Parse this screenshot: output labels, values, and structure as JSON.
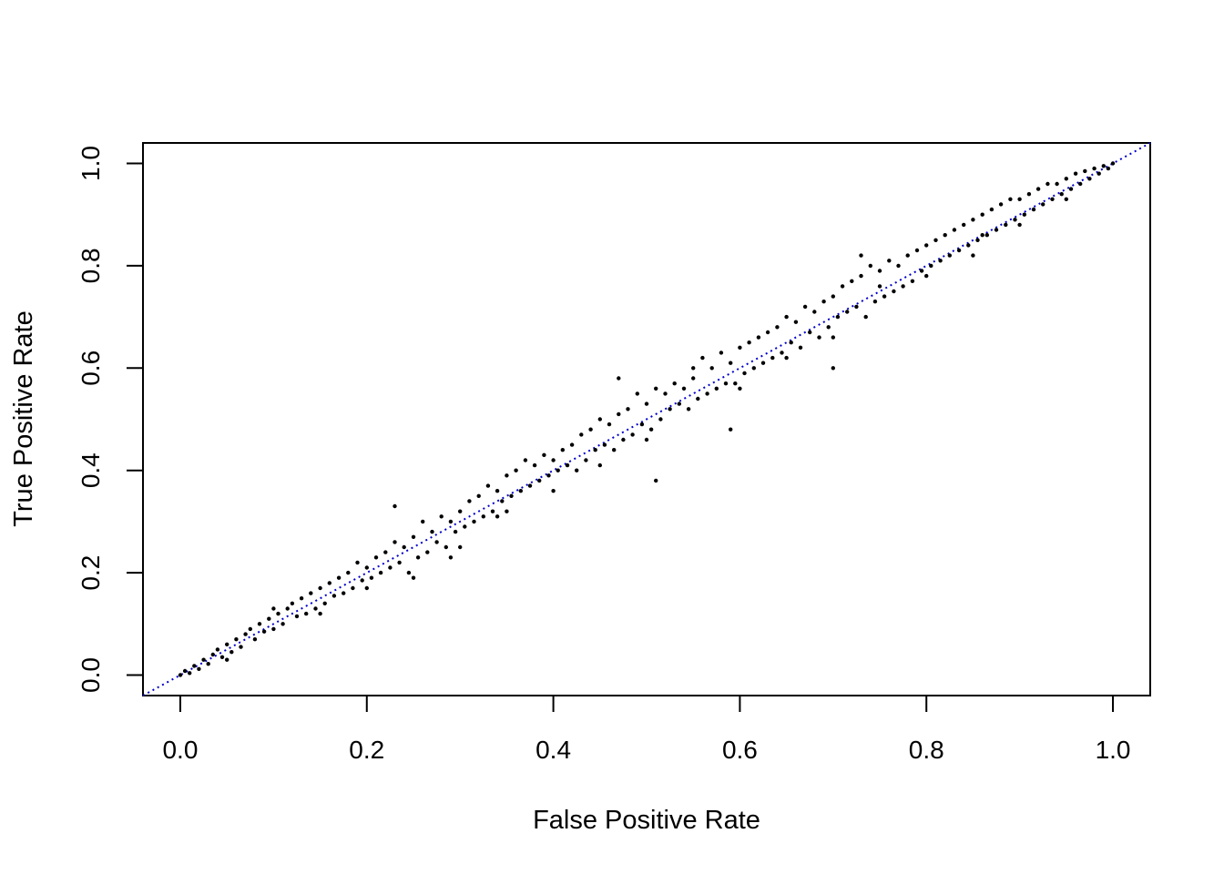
{
  "chart_data": {
    "type": "scatter",
    "title": "",
    "xlabel": "False Positive Rate",
    "ylabel": "True Positive Rate",
    "xlim": [
      -0.04,
      1.04
    ],
    "ylim": [
      -0.04,
      1.04
    ],
    "x_ticks": [
      0.0,
      0.2,
      0.4,
      0.6,
      0.8,
      1.0
    ],
    "x_tick_labels": [
      "0.0",
      "0.2",
      "0.4",
      "0.6",
      "0.8",
      "1.0"
    ],
    "y_ticks": [
      0.0,
      0.2,
      0.4,
      0.6,
      0.8,
      1.0
    ],
    "y_tick_labels": [
      "0.0",
      "0.2",
      "0.4",
      "0.6",
      "0.8",
      "1.0"
    ],
    "grid": false,
    "legend": "none",
    "point_color": "#000000",
    "reference_line": {
      "slope": 1,
      "intercept": 0,
      "style": "dotted",
      "color": "#0000cc"
    },
    "points": [
      [
        0.0,
        0.0
      ],
      [
        0.005,
        0.008
      ],
      [
        0.01,
        0.004
      ],
      [
        0.015,
        0.018
      ],
      [
        0.02,
        0.012
      ],
      [
        0.025,
        0.03
      ],
      [
        0.03,
        0.022
      ],
      [
        0.035,
        0.04
      ],
      [
        0.04,
        0.05
      ],
      [
        0.045,
        0.035
      ],
      [
        0.05,
        0.06
      ],
      [
        0.055,
        0.045
      ],
      [
        0.06,
        0.07
      ],
      [
        0.065,
        0.055
      ],
      [
        0.07,
        0.08
      ],
      [
        0.075,
        0.09
      ],
      [
        0.08,
        0.07
      ],
      [
        0.085,
        0.1
      ],
      [
        0.09,
        0.085
      ],
      [
        0.095,
        0.11
      ],
      [
        0.1,
        0.09
      ],
      [
        0.105,
        0.12
      ],
      [
        0.11,
        0.1
      ],
      [
        0.115,
        0.13
      ],
      [
        0.12,
        0.14
      ],
      [
        0.125,
        0.115
      ],
      [
        0.13,
        0.15
      ],
      [
        0.135,
        0.12
      ],
      [
        0.14,
        0.16
      ],
      [
        0.145,
        0.13
      ],
      [
        0.15,
        0.17
      ],
      [
        0.155,
        0.14
      ],
      [
        0.16,
        0.18
      ],
      [
        0.165,
        0.155
      ],
      [
        0.17,
        0.19
      ],
      [
        0.175,
        0.16
      ],
      [
        0.18,
        0.2
      ],
      [
        0.185,
        0.17
      ],
      [
        0.19,
        0.22
      ],
      [
        0.195,
        0.185
      ],
      [
        0.2,
        0.21
      ],
      [
        0.205,
        0.19
      ],
      [
        0.21,
        0.23
      ],
      [
        0.215,
        0.2
      ],
      [
        0.22,
        0.24
      ],
      [
        0.225,
        0.21
      ],
      [
        0.23,
        0.26
      ],
      [
        0.235,
        0.22
      ],
      [
        0.24,
        0.25
      ],
      [
        0.245,
        0.2
      ],
      [
        0.25,
        0.27
      ],
      [
        0.255,
        0.23
      ],
      [
        0.26,
        0.3
      ],
      [
        0.265,
        0.24
      ],
      [
        0.27,
        0.28
      ],
      [
        0.275,
        0.26
      ],
      [
        0.28,
        0.31
      ],
      [
        0.285,
        0.25
      ],
      [
        0.29,
        0.3
      ],
      [
        0.295,
        0.28
      ],
      [
        0.3,
        0.32
      ],
      [
        0.305,
        0.29
      ],
      [
        0.31,
        0.34
      ],
      [
        0.315,
        0.3
      ],
      [
        0.32,
        0.35
      ],
      [
        0.325,
        0.31
      ],
      [
        0.33,
        0.37
      ],
      [
        0.335,
        0.32
      ],
      [
        0.34,
        0.36
      ],
      [
        0.345,
        0.34
      ],
      [
        0.35,
        0.39
      ],
      [
        0.355,
        0.35
      ],
      [
        0.36,
        0.4
      ],
      [
        0.365,
        0.36
      ],
      [
        0.37,
        0.42
      ],
      [
        0.375,
        0.37
      ],
      [
        0.38,
        0.41
      ],
      [
        0.385,
        0.38
      ],
      [
        0.39,
        0.43
      ],
      [
        0.395,
        0.39
      ],
      [
        0.4,
        0.42
      ],
      [
        0.405,
        0.4
      ],
      [
        0.41,
        0.44
      ],
      [
        0.415,
        0.41
      ],
      [
        0.42,
        0.45
      ],
      [
        0.425,
        0.4
      ],
      [
        0.43,
        0.47
      ],
      [
        0.435,
        0.42
      ],
      [
        0.44,
        0.48
      ],
      [
        0.445,
        0.44
      ],
      [
        0.45,
        0.5
      ],
      [
        0.455,
        0.45
      ],
      [
        0.46,
        0.49
      ],
      [
        0.465,
        0.44
      ],
      [
        0.47,
        0.51
      ],
      [
        0.475,
        0.46
      ],
      [
        0.48,
        0.52
      ],
      [
        0.485,
        0.47
      ],
      [
        0.49,
        0.55
      ],
      [
        0.495,
        0.49
      ],
      [
        0.5,
        0.53
      ],
      [
        0.505,
        0.48
      ],
      [
        0.51,
        0.56
      ],
      [
        0.515,
        0.5
      ],
      [
        0.52,
        0.55
      ],
      [
        0.525,
        0.52
      ],
      [
        0.53,
        0.57
      ],
      [
        0.535,
        0.53
      ],
      [
        0.54,
        0.56
      ],
      [
        0.545,
        0.52
      ],
      [
        0.55,
        0.6
      ],
      [
        0.555,
        0.54
      ],
      [
        0.56,
        0.62
      ],
      [
        0.565,
        0.55
      ],
      [
        0.57,
        0.6
      ],
      [
        0.575,
        0.56
      ],
      [
        0.58,
        0.63
      ],
      [
        0.585,
        0.57
      ],
      [
        0.59,
        0.61
      ],
      [
        0.595,
        0.57
      ],
      [
        0.6,
        0.64
      ],
      [
        0.605,
        0.59
      ],
      [
        0.61,
        0.65
      ],
      [
        0.615,
        0.6
      ],
      [
        0.62,
        0.66
      ],
      [
        0.625,
        0.61
      ],
      [
        0.63,
        0.67
      ],
      [
        0.635,
        0.62
      ],
      [
        0.64,
        0.68
      ],
      [
        0.645,
        0.63
      ],
      [
        0.65,
        0.7
      ],
      [
        0.655,
        0.65
      ],
      [
        0.66,
        0.69
      ],
      [
        0.665,
        0.64
      ],
      [
        0.67,
        0.72
      ],
      [
        0.675,
        0.67
      ],
      [
        0.68,
        0.71
      ],
      [
        0.685,
        0.66
      ],
      [
        0.69,
        0.73
      ],
      [
        0.695,
        0.68
      ],
      [
        0.7,
        0.74
      ],
      [
        0.705,
        0.7
      ],
      [
        0.71,
        0.76
      ],
      [
        0.715,
        0.71
      ],
      [
        0.72,
        0.77
      ],
      [
        0.725,
        0.72
      ],
      [
        0.73,
        0.78
      ],
      [
        0.735,
        0.7
      ],
      [
        0.74,
        0.8
      ],
      [
        0.745,
        0.73
      ],
      [
        0.75,
        0.79
      ],
      [
        0.755,
        0.74
      ],
      [
        0.76,
        0.81
      ],
      [
        0.765,
        0.75
      ],
      [
        0.77,
        0.8
      ],
      [
        0.775,
        0.76
      ],
      [
        0.78,
        0.82
      ],
      [
        0.785,
        0.77
      ],
      [
        0.79,
        0.83
      ],
      [
        0.795,
        0.79
      ],
      [
        0.8,
        0.84
      ],
      [
        0.805,
        0.8
      ],
      [
        0.81,
        0.85
      ],
      [
        0.815,
        0.81
      ],
      [
        0.82,
        0.86
      ],
      [
        0.825,
        0.82
      ],
      [
        0.83,
        0.87
      ],
      [
        0.835,
        0.83
      ],
      [
        0.84,
        0.88
      ],
      [
        0.845,
        0.84
      ],
      [
        0.85,
        0.89
      ],
      [
        0.855,
        0.85
      ],
      [
        0.86,
        0.9
      ],
      [
        0.865,
        0.86
      ],
      [
        0.87,
        0.91
      ],
      [
        0.875,
        0.87
      ],
      [
        0.88,
        0.92
      ],
      [
        0.885,
        0.88
      ],
      [
        0.89,
        0.93
      ],
      [
        0.895,
        0.89
      ],
      [
        0.9,
        0.93
      ],
      [
        0.905,
        0.9
      ],
      [
        0.91,
        0.94
      ],
      [
        0.915,
        0.91
      ],
      [
        0.92,
        0.95
      ],
      [
        0.925,
        0.92
      ],
      [
        0.93,
        0.96
      ],
      [
        0.935,
        0.93
      ],
      [
        0.94,
        0.96
      ],
      [
        0.945,
        0.94
      ],
      [
        0.95,
        0.97
      ],
      [
        0.955,
        0.95
      ],
      [
        0.96,
        0.98
      ],
      [
        0.965,
        0.96
      ],
      [
        0.97,
        0.985
      ],
      [
        0.975,
        0.97
      ],
      [
        0.98,
        0.99
      ],
      [
        0.985,
        0.98
      ],
      [
        0.99,
        0.995
      ],
      [
        0.995,
        0.99
      ],
      [
        1.0,
        1.0
      ],
      [
        0.05,
        0.03
      ],
      [
        0.1,
        0.13
      ],
      [
        0.15,
        0.12
      ],
      [
        0.2,
        0.17
      ],
      [
        0.25,
        0.19
      ],
      [
        0.3,
        0.25
      ],
      [
        0.35,
        0.32
      ],
      [
        0.4,
        0.36
      ],
      [
        0.45,
        0.41
      ],
      [
        0.5,
        0.46
      ],
      [
        0.55,
        0.58
      ],
      [
        0.6,
        0.56
      ],
      [
        0.65,
        0.62
      ],
      [
        0.7,
        0.66
      ],
      [
        0.75,
        0.76
      ],
      [
        0.8,
        0.78
      ],
      [
        0.85,
        0.82
      ],
      [
        0.9,
        0.88
      ],
      [
        0.95,
        0.93
      ],
      [
        0.23,
        0.33
      ],
      [
        0.29,
        0.23
      ],
      [
        0.34,
        0.31
      ],
      [
        0.47,
        0.58
      ],
      [
        0.51,
        0.38
      ],
      [
        0.59,
        0.48
      ],
      [
        0.7,
        0.6
      ],
      [
        0.73,
        0.82
      ],
      [
        0.86,
        0.86
      ]
    ]
  }
}
